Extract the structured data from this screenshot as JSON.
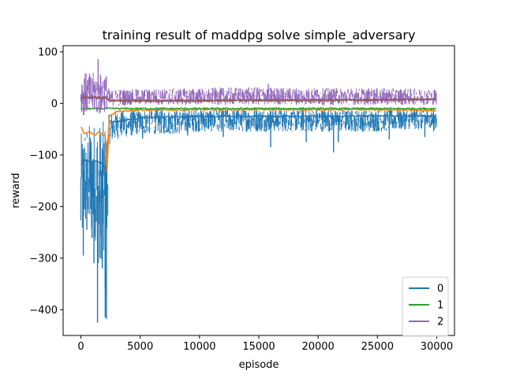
{
  "chart_data": {
    "type": "line",
    "title": "training result of maddpg solve simple_adversary",
    "xlabel": "episode",
    "ylabel": "reward",
    "xlim": [
      -1500,
      31500
    ],
    "ylim": [
      -450,
      112
    ],
    "xticks": [
      0,
      5000,
      10000,
      15000,
      20000,
      25000,
      30000
    ],
    "yticks": [
      100,
      0,
      -100,
      -200,
      -300,
      -400
    ],
    "ytick_labels": [
      "100",
      "0",
      "−100",
      "−200",
      "−300",
      "−400"
    ],
    "legend": {
      "position": "bottom-right",
      "entries": [
        "0",
        "1",
        "2"
      ]
    },
    "series": [
      {
        "name": "0",
        "color": "#1f77b4",
        "legend": true,
        "x": [
          0,
          300,
          600,
          900,
          1200,
          1500,
          1800,
          2100,
          2400,
          3000,
          5000,
          8000,
          10000,
          13000,
          15000,
          18000,
          20000,
          22000,
          25000,
          28000,
          30000
        ],
        "hi": [
          -60,
          -40,
          -40,
          -35,
          -35,
          -35,
          -35,
          -30,
          -20,
          -15,
          -12,
          -12,
          -10,
          -10,
          -10,
          -12,
          -10,
          -12,
          -12,
          -10,
          -10
        ],
        "lo": [
          -300,
          -250,
          -240,
          -290,
          -260,
          -320,
          -300,
          -415,
          -80,
          -70,
          -60,
          -60,
          -55,
          -55,
          -55,
          -55,
          -55,
          -55,
          -55,
          -50,
          -55
        ],
        "spikes": [
          [
            200,
            -295
          ],
          [
            500,
            -245
          ],
          [
            900,
            -240
          ],
          [
            1100,
            -310
          ],
          [
            1400,
            -425
          ],
          [
            1600,
            -300
          ],
          [
            1800,
            -320
          ],
          [
            2050,
            -415
          ],
          [
            2150,
            -418
          ],
          [
            5200,
            -68
          ],
          [
            9000,
            -62
          ],
          [
            12000,
            -65
          ],
          [
            16000,
            -85
          ],
          [
            19000,
            -75
          ],
          [
            21300,
            -95
          ],
          [
            21700,
            -75
          ],
          [
            26000,
            -70
          ],
          [
            29000,
            -65
          ]
        ],
        "mean": [
          -120,
          -110,
          -110,
          -115,
          -110,
          -115,
          -115,
          -130,
          -35,
          -35,
          -28,
          -26,
          -25,
          -25,
          -25,
          -25,
          -25,
          -25,
          -24,
          -24,
          -24
        ]
      },
      {
        "name": "",
        "color": "#ff7f0e",
        "legend": false,
        "x": [
          0,
          300,
          600,
          900,
          1200,
          1500,
          1800,
          2100,
          2200,
          2400,
          3000,
          5000,
          10000,
          15000,
          20000,
          25000,
          30000
        ],
        "mean": [
          -45,
          -60,
          -55,
          -58,
          -62,
          -55,
          -60,
          -65,
          -135,
          -25,
          -15,
          -13,
          -12,
          -12,
          -12,
          -12,
          -14
        ]
      },
      {
        "name": "1",
        "color": "#2ca02c",
        "legend": true,
        "x": [
          0,
          30000
        ],
        "mean": [
          -10,
          -10
        ]
      },
      {
        "name": "2",
        "color": "#9467bd",
        "legend": true,
        "x": [
          0,
          300,
          600,
          900,
          1200,
          1500,
          1800,
          2100,
          2400,
          3000,
          5000,
          10000,
          15000,
          20000,
          25000,
          30000
        ],
        "hi": [
          55,
          60,
          60,
          58,
          62,
          58,
          60,
          62,
          25,
          28,
          28,
          30,
          32,
          30,
          30,
          28
        ],
        "lo": [
          -20,
          -25,
          -20,
          -22,
          -20,
          -25,
          -20,
          -15,
          -5,
          -5,
          -3,
          -3,
          -3,
          -3,
          -3,
          -3
        ],
        "spikes": [
          [
            1450,
            86
          ],
          [
            15800,
            38
          ]
        ],
        "mean": [
          10,
          12,
          11,
          12,
          11,
          10,
          12,
          14,
          5,
          6,
          6,
          6,
          7,
          7,
          7,
          8
        ]
      },
      {
        "name": "",
        "color": "#8c564b",
        "legend": false,
        "x": [
          0,
          300,
          600,
          900,
          1200,
          1500,
          1800,
          2100,
          2400,
          3000,
          5000,
          10000,
          15000,
          20000,
          25000,
          30000
        ],
        "mean": [
          10,
          12,
          12,
          12,
          12,
          12,
          12,
          10,
          5,
          5,
          5,
          5,
          6,
          6,
          7,
          8
        ]
      }
    ]
  }
}
